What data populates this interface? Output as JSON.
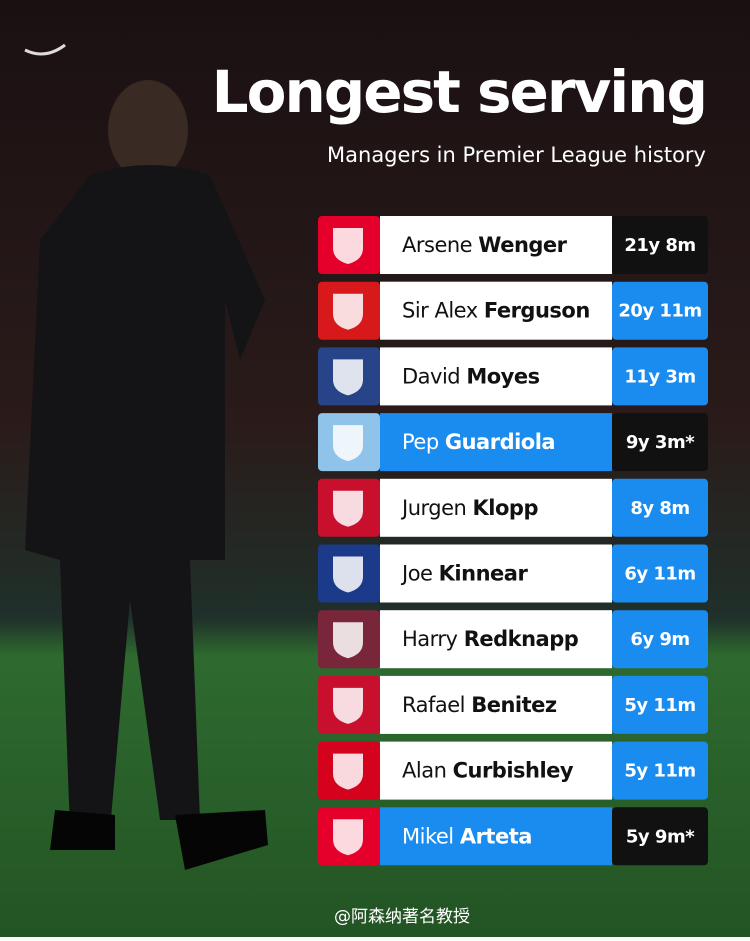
{
  "header": {
    "title": "Longest serving",
    "subtitle": "Managers in Premier League history"
  },
  "managers": [
    {
      "first": "Arsene",
      "last": "Wenger",
      "tenure": "21y 8m",
      "badge_color": "#e4002b",
      "name_bg": "#ffffff",
      "name_color": "#111111",
      "tenure_bg": "#111111"
    },
    {
      "first": "Sir Alex",
      "last": "Ferguson",
      "tenure": "20y 11m",
      "badge_color": "#d7191c",
      "name_bg": "#ffffff",
      "name_color": "#111111",
      "tenure_bg": "#1a8cf0"
    },
    {
      "first": "David",
      "last": "Moyes",
      "tenure": "11y 3m",
      "badge_color": "#274488",
      "name_bg": "#ffffff",
      "name_color": "#111111",
      "tenure_bg": "#1a8cf0"
    },
    {
      "first": "Pep",
      "last": "Guardiola",
      "tenure": "9y 3m*",
      "badge_color": "#8fc3ea",
      "name_bg": "#1a8cf0",
      "name_color": "#ffffff",
      "tenure_bg": "#111111"
    },
    {
      "first": "Jurgen",
      "last": "Klopp",
      "tenure": "8y 8m",
      "badge_color": "#c8102e",
      "name_bg": "#ffffff",
      "name_color": "#111111",
      "tenure_bg": "#1a8cf0"
    },
    {
      "first": "Joe",
      "last": "Kinnear",
      "tenure": "6y 11m",
      "badge_color": "#1c3a8a",
      "name_bg": "#ffffff",
      "name_color": "#111111",
      "tenure_bg": "#1a8cf0"
    },
    {
      "first": "Harry",
      "last": "Redknapp",
      "tenure": "6y 9m",
      "badge_color": "#7a263a",
      "name_bg": "#ffffff",
      "name_color": "#111111",
      "tenure_bg": "#1a8cf0"
    },
    {
      "first": "Rafael",
      "last": "Benitez",
      "tenure": "5y 11m",
      "badge_color": "#c8102e",
      "name_bg": "#ffffff",
      "name_color": "#111111",
      "tenure_bg": "#1a8cf0"
    },
    {
      "first": "Alan",
      "last": "Curbishley",
      "tenure": "5y 11m",
      "badge_color": "#d4021d",
      "name_bg": "#ffffff",
      "name_color": "#111111",
      "tenure_bg": "#1a8cf0"
    },
    {
      "first": "Mikel",
      "last": "Arteta",
      "tenure": "5y 9m*",
      "badge_color": "#e4002b",
      "name_bg": "#1a8cf0",
      "name_color": "#ffffff",
      "tenure_bg": "#111111"
    }
  ],
  "watermark": "@阿森纳著名教授"
}
